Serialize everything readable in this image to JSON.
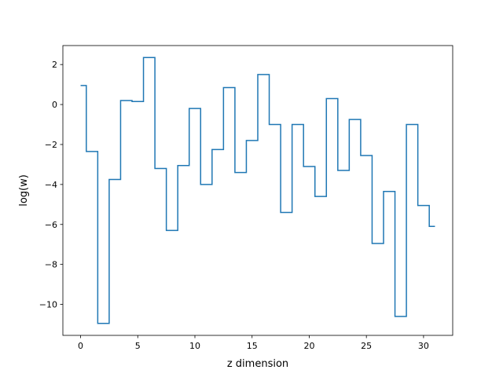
{
  "chart_data": {
    "type": "line",
    "drawstyle": "steps-mid",
    "xlabel": "z dimension",
    "ylabel": "log(w)",
    "xlim": [
      -1.55,
      32.55
    ],
    "ylim": [
      -11.55,
      2.95
    ],
    "xticks": [
      0,
      5,
      10,
      15,
      20,
      25,
      30
    ],
    "xtick_labels": [
      "0",
      "5",
      "10",
      "15",
      "20",
      "25",
      "30"
    ],
    "yticks": [
      2,
      0,
      -2,
      -4,
      -6,
      -8,
      -10
    ],
    "ytick_labels": [
      "2",
      "0",
      "−2",
      "−4",
      "−6",
      "−8",
      "−10"
    ],
    "grid": false,
    "legend": "none",
    "series": [
      {
        "color": "#1f77b4",
        "x": [
          0,
          1,
          2,
          3,
          4,
          5,
          6,
          7,
          8,
          9,
          10,
          11,
          12,
          13,
          14,
          15,
          16,
          17,
          18,
          19,
          20,
          21,
          22,
          23,
          24,
          25,
          26,
          27,
          28,
          29,
          30,
          31
        ],
        "y": [
          0.95,
          -2.35,
          -10.95,
          -3.75,
          0.2,
          0.15,
          2.35,
          -3.2,
          -6.3,
          -3.05,
          -0.2,
          -4.0,
          -2.25,
          0.85,
          -3.4,
          -1.8,
          1.5,
          -1.0,
          -5.4,
          -1.0,
          -3.1,
          -4.6,
          0.3,
          -3.3,
          -0.75,
          -2.55,
          -6.95,
          -4.35,
          -10.6,
          -1.0,
          -5.05,
          -6.1
        ]
      }
    ]
  }
}
